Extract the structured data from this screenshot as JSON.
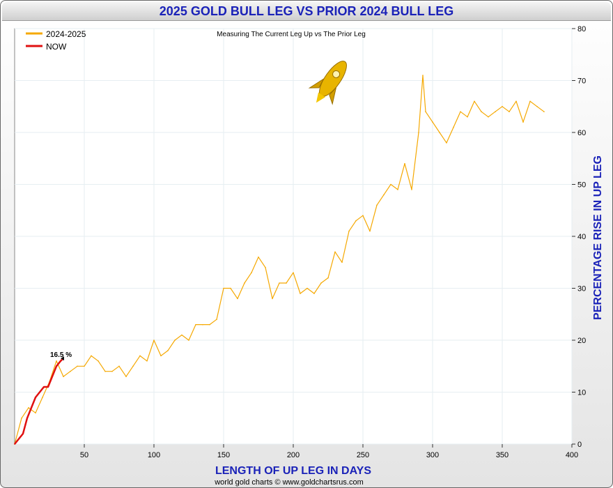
{
  "header": {
    "title": "2025 GOLD BULL LEG VS PRIOR 2024 BULL LEG"
  },
  "footer": {
    "credit": "world gold charts © www.goldchartsrus.com"
  },
  "chart_data": {
    "type": "line",
    "title": "2025 GOLD BULL LEG VS PRIOR 2024 BULL LEG",
    "subtitle": "Measuring The Current Leg Up vs The Prior Leg",
    "xlabel": "LENGTH OF UP LEG IN DAYS",
    "ylabel": "PERCENTAGE RISE IN UP LEG",
    "xlim": [
      0,
      400
    ],
    "ylim": [
      0,
      80
    ],
    "x_ticks": [
      50,
      100,
      150,
      200,
      250,
      300,
      350,
      400
    ],
    "y_ticks": [
      0,
      10,
      20,
      30,
      40,
      50,
      60,
      70,
      80
    ],
    "grid": true,
    "legend_position": "top-left",
    "annotation": "16.5 %",
    "series": [
      {
        "name": "2024-2025",
        "color": "#f5a800",
        "x": [
          0,
          5,
          10,
          15,
          20,
          25,
          30,
          35,
          40,
          45,
          50,
          55,
          60,
          65,
          70,
          75,
          80,
          85,
          90,
          95,
          100,
          105,
          110,
          115,
          120,
          125,
          130,
          135,
          140,
          145,
          150,
          155,
          160,
          165,
          170,
          175,
          180,
          185,
          190,
          195,
          200,
          205,
          210,
          215,
          220,
          225,
          230,
          235,
          240,
          245,
          250,
          255,
          260,
          265,
          270,
          275,
          280,
          285,
          290,
          293,
          295,
          300,
          305,
          310,
          315,
          320,
          325,
          330,
          335,
          340,
          345,
          350,
          355,
          360,
          365,
          370,
          375,
          380
        ],
        "values": [
          0,
          5,
          7,
          6,
          9,
          12,
          16,
          13,
          14,
          15,
          15,
          17,
          16,
          14,
          14,
          15,
          13,
          15,
          17,
          16,
          20,
          17,
          18,
          20,
          21,
          20,
          23,
          23,
          23,
          24,
          30,
          30,
          28,
          31,
          33,
          36,
          34,
          28,
          31,
          31,
          33,
          29,
          30,
          29,
          31,
          32,
          37,
          35,
          41,
          43,
          44,
          41,
          46,
          48,
          50,
          49,
          54,
          49,
          60,
          71,
          64,
          62,
          60,
          58,
          61,
          64,
          63,
          66,
          64,
          63,
          64,
          65,
          64,
          66,
          62,
          66,
          65,
          64
        ]
      },
      {
        "name": "NOW",
        "color": "#e01010",
        "x": [
          0,
          3,
          6,
          9,
          12,
          15,
          18,
          21,
          24,
          27,
          30,
          33,
          35
        ],
        "values": [
          0,
          1,
          2,
          5,
          7,
          9,
          10,
          11,
          11,
          13,
          15,
          16,
          16.5
        ]
      }
    ]
  }
}
